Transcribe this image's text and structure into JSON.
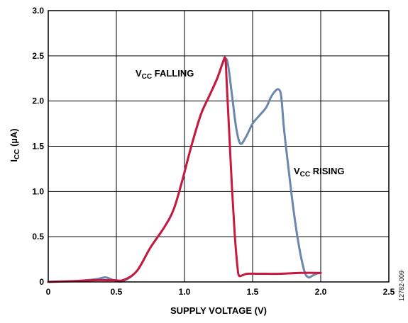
{
  "chart_data": {
    "type": "line",
    "xlabel": "SUPPLY VOLTAGE (V)",
    "ylabel": {
      "main": "I",
      "sub": "CC",
      "rest": " (µA)"
    },
    "xlim": [
      0,
      2.5
    ],
    "ylim": [
      0,
      3.0
    ],
    "x_ticks": [
      "0",
      "0.5",
      "1.0",
      "1.5",
      "2.0",
      "2.5"
    ],
    "y_ticks": [
      "0",
      "0.5",
      "1.0",
      "1.5",
      "2.0",
      "2.5",
      "3.0"
    ],
    "grid": true,
    "series": [
      {
        "color": "#6b87ad",
        "label": {
          "main": "V",
          "sub": "CC",
          "rest": " RISING"
        },
        "x": [
          0,
          0.2,
          0.35,
          0.42,
          0.48,
          0.55,
          0.65,
          0.75,
          0.85,
          0.92,
          0.98,
          1.05,
          1.12,
          1.18,
          1.24,
          1.28,
          1.3,
          1.32,
          1.35,
          1.38,
          1.41,
          1.45,
          1.5,
          1.55,
          1.6,
          1.63,
          1.66,
          1.69,
          1.71,
          1.73,
          1.76,
          1.8,
          1.84,
          1.88,
          1.91,
          1.94,
          1.97,
          2.0
        ],
        "y": [
          0.0,
          0.01,
          0.03,
          0.05,
          0.02,
          0.01,
          0.12,
          0.38,
          0.6,
          0.8,
          1.1,
          1.5,
          1.85,
          2.05,
          2.25,
          2.42,
          2.47,
          2.4,
          2.05,
          1.7,
          1.53,
          1.6,
          1.75,
          1.84,
          1.93,
          2.03,
          2.1,
          2.13,
          2.05,
          1.7,
          1.3,
          0.8,
          0.4,
          0.12,
          0.05,
          0.07,
          0.09,
          0.1
        ]
      },
      {
        "color": "#c8183f",
        "label": {
          "main": "V",
          "sub": "CC",
          "rest": " FALLING"
        },
        "x": [
          0,
          0.2,
          0.35,
          0.42,
          0.48,
          0.55,
          0.65,
          0.75,
          0.85,
          0.92,
          0.98,
          1.05,
          1.12,
          1.18,
          1.24,
          1.28,
          1.3,
          1.31,
          1.33,
          1.35,
          1.37,
          1.39,
          1.4,
          1.42,
          1.46,
          1.55,
          1.7,
          1.85,
          2.0
        ],
        "y": [
          0.0,
          0.01,
          0.02,
          0.02,
          0.02,
          0.02,
          0.12,
          0.38,
          0.6,
          0.8,
          1.1,
          1.5,
          1.85,
          2.05,
          2.25,
          2.42,
          2.47,
          2.2,
          1.6,
          1.0,
          0.5,
          0.15,
          0.07,
          0.07,
          0.09,
          0.09,
          0.09,
          0.1,
          0.1
        ]
      }
    ],
    "figure_id": "12782-009"
  }
}
